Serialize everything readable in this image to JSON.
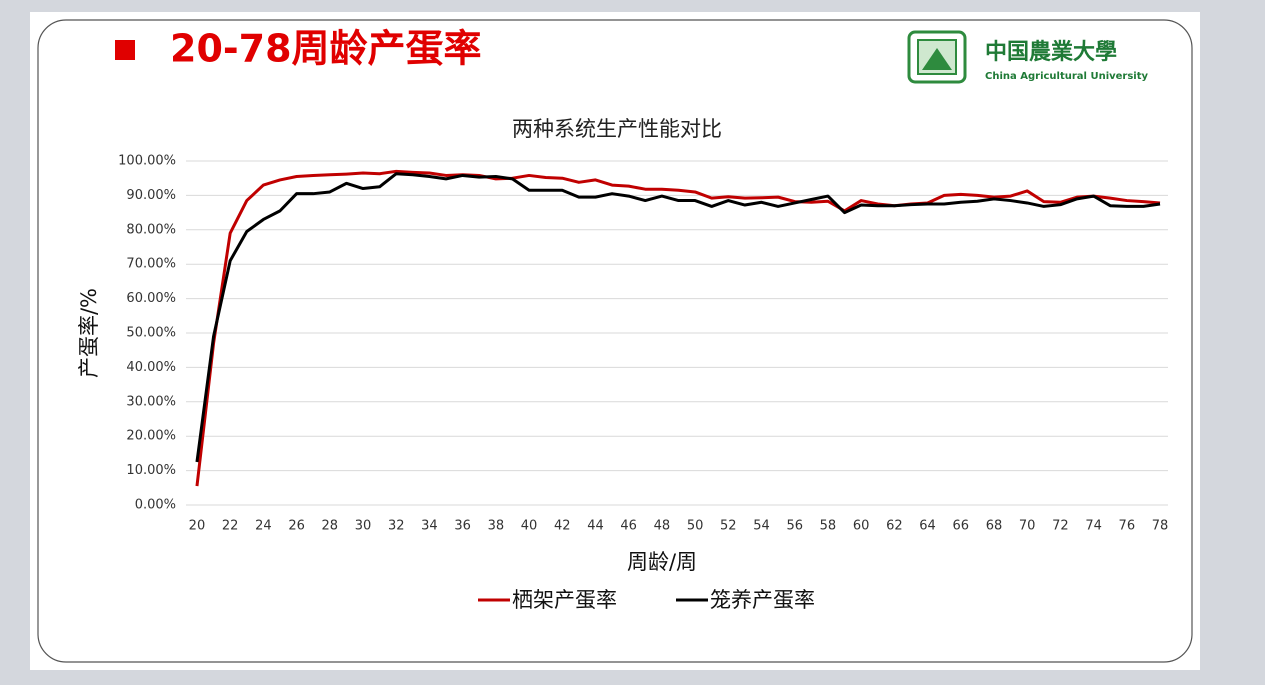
{
  "header": {
    "title": "20-78周龄产蛋率",
    "logo_cn": "中国農業大學",
    "logo_en": "China Agricultural University"
  },
  "chart_data": {
    "type": "line",
    "title": "两种系统生产性能对比",
    "x_label": "周龄/周",
    "y_label": "产蛋率/%",
    "x": [
      20,
      21,
      22,
      23,
      24,
      25,
      26,
      27,
      28,
      29,
      30,
      31,
      32,
      33,
      34,
      35,
      36,
      37,
      38,
      39,
      40,
      41,
      42,
      43,
      44,
      45,
      46,
      47,
      48,
      49,
      50,
      51,
      52,
      53,
      54,
      55,
      56,
      57,
      58,
      59,
      60,
      61,
      62,
      63,
      64,
      65,
      66,
      67,
      68,
      69,
      70,
      71,
      72,
      73,
      74,
      75,
      76,
      77,
      78
    ],
    "series": [
      {
        "name": "栖架产蛋率",
        "color": "#c00000",
        "values": [
          5.5,
          47,
          79,
          88.5,
          93,
          94.5,
          95.5,
          95.8,
          96,
          96.2,
          96.5,
          96.3,
          97,
          96.7,
          96.5,
          95.8,
          96,
          95.8,
          94.8,
          95,
          95.8,
          95.2,
          95,
          93.8,
          94.5,
          93,
          92.7,
          91.8,
          91.8,
          91.5,
          91,
          89.2,
          89.6,
          89.2,
          89.3,
          89.5,
          88.2,
          88,
          88.3,
          85.5,
          88.5,
          87.5,
          87,
          87.5,
          87.8,
          90,
          90.3,
          90,
          89.5,
          89.8,
          91.3,
          88.2,
          88,
          89.5,
          89.8,
          89.2,
          88.5,
          88.2,
          87.8
        ]
      },
      {
        "name": "笼养产蛋率",
        "color": "#000000",
        "values": [
          12.5,
          49,
          71,
          79.5,
          83,
          85.5,
          90.5,
          90.5,
          91,
          93.5,
          92,
          92.5,
          96.3,
          96,
          95.5,
          94.8,
          95.8,
          95.3,
          95.5,
          94.8,
          91.5,
          91.5,
          91.5,
          89.5,
          89.5,
          90.5,
          89.8,
          88.5,
          89.8,
          88.5,
          88.5,
          86.8,
          88.5,
          87.2,
          88,
          86.8,
          87.8,
          88.8,
          89.8,
          85,
          87.2,
          87,
          87,
          87.3,
          87.5,
          87.5,
          88,
          88.3,
          89,
          88.5,
          87.8,
          86.8,
          87.3,
          89,
          89.8,
          87,
          86.8,
          86.8,
          87.5
        ]
      }
    ],
    "xlim": [
      19.34,
      78.48
    ],
    "xticks": [
      20,
      22,
      24,
      26,
      28,
      30,
      32,
      34,
      36,
      38,
      40,
      42,
      44,
      46,
      48,
      50,
      52,
      54,
      56,
      58,
      60,
      62,
      64,
      66,
      68,
      70,
      72,
      74,
      76,
      78
    ],
    "ylim": [
      0,
      100
    ],
    "yticks": [
      {
        "value": 0,
        "label": "0.00%"
      },
      {
        "value": 10,
        "label": "10.00%"
      },
      {
        "value": 20,
        "label": "20.00%"
      },
      {
        "value": 30,
        "label": "30.00%"
      },
      {
        "value": 40,
        "label": "40.00%"
      },
      {
        "value": 50,
        "label": "50.00%"
      },
      {
        "value": 60,
        "label": "60.00%"
      },
      {
        "value": 70,
        "label": "70.00%"
      },
      {
        "value": 80,
        "label": "80.00%"
      },
      {
        "value": 90,
        "label": "90.00%"
      },
      {
        "value": 100,
        "label": "100.00%"
      }
    ],
    "grid": true,
    "legend": "bottom"
  }
}
